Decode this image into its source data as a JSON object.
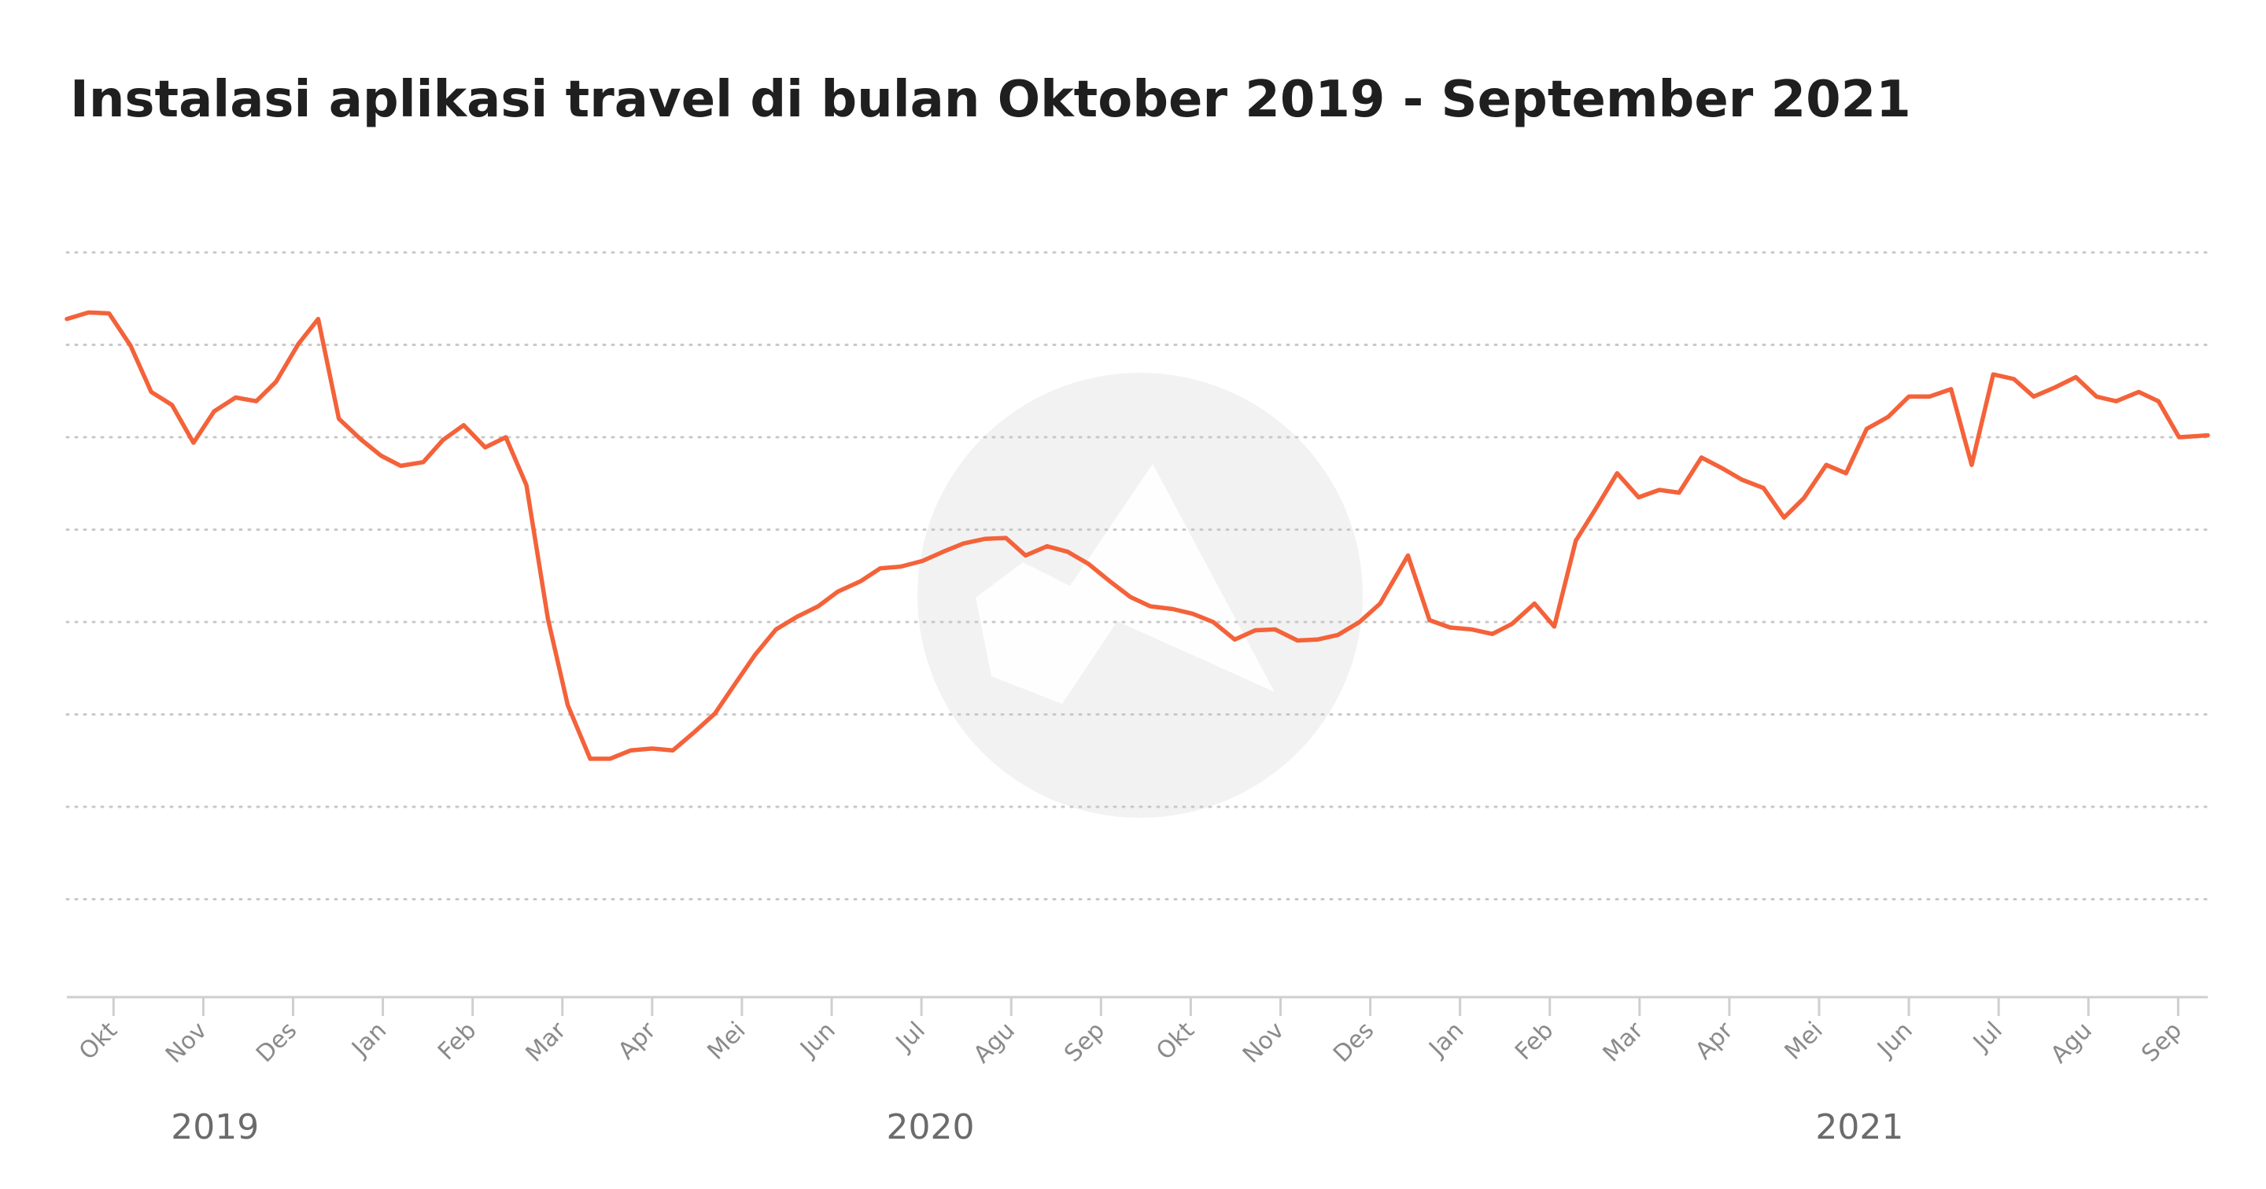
{
  "chart_data": {
    "type": "line",
    "title": "Instalasi aplikasi travel di bulan Oktober 2019 - September 2021",
    "color": "#f4623a",
    "grid": true,
    "xlim": [
      -0.52,
      23.33
    ],
    "ylim": [
      -0.06,
      8
    ],
    "yticks": [
      1,
      2,
      3,
      4,
      5,
      6,
      7,
      8
    ],
    "xticks": [
      {
        "value": 0,
        "label": "Okt"
      },
      {
        "value": 1,
        "label": "Nov"
      },
      {
        "value": 2,
        "label": "Des"
      },
      {
        "value": 3,
        "label": "Jan"
      },
      {
        "value": 4,
        "label": "Feb"
      },
      {
        "value": 5,
        "label": "Mar"
      },
      {
        "value": 6,
        "label": "Apr"
      },
      {
        "value": 7,
        "label": "Mei"
      },
      {
        "value": 8,
        "label": "Jun"
      },
      {
        "value": 9,
        "label": "Jul"
      },
      {
        "value": 10,
        "label": "Agu"
      },
      {
        "value": 11,
        "label": "Sep"
      },
      {
        "value": 12,
        "label": "Okt"
      },
      {
        "value": 13,
        "label": "Nov"
      },
      {
        "value": 14,
        "label": "Des"
      },
      {
        "value": 15,
        "label": "Jan"
      },
      {
        "value": 16,
        "label": "Feb"
      },
      {
        "value": 17,
        "label": "Mar"
      },
      {
        "value": 18,
        "label": "Apr"
      },
      {
        "value": 19,
        "label": "Mei"
      },
      {
        "value": 20,
        "label": "Jun"
      },
      {
        "value": 21,
        "label": "Jul"
      },
      {
        "value": 22,
        "label": "Agu"
      },
      {
        "value": 23,
        "label": "Sep"
      }
    ],
    "year_labels": [
      {
        "value": 1.13,
        "label": "2019"
      },
      {
        "value": 9.1,
        "label": "2020"
      },
      {
        "value": 19.45,
        "label": "2021"
      }
    ],
    "x": [
      -0.52,
      -0.28,
      -0.05,
      0.19,
      0.42,
      0.65,
      0.89,
      1.12,
      1.36,
      1.59,
      1.81,
      2.06,
      2.28,
      2.51,
      2.75,
      2.98,
      3.2,
      3.45,
      3.67,
      3.9,
      4.14,
      4.37,
      4.6,
      4.84,
      5.06,
      5.31,
      5.53,
      5.76,
      6.0,
      6.23,
      6.46,
      6.7,
      6.93,
      7.15,
      7.38,
      7.62,
      7.85,
      8.07,
      8.32,
      8.54,
      8.77,
      9.01,
      9.24,
      9.47,
      9.71,
      9.94,
      10.16,
      10.4,
      10.63,
      10.86,
      11.1,
      11.33,
      11.55,
      11.8,
      12.02,
      12.25,
      12.49,
      12.72,
      12.94,
      13.19,
      13.41,
      13.64,
      13.88,
      14.11,
      14.42,
      14.66,
      14.89,
      15.13,
      15.36,
      15.58,
      15.83,
      16.05,
      16.29,
      16.52,
      16.75,
      16.99,
      17.22,
      17.44,
      17.69,
      17.91,
      18.14,
      18.38,
      18.61,
      18.83,
      19.08,
      19.3,
      19.53,
      19.77,
      20.0,
      20.23,
      20.47,
      20.7,
      20.94,
      21.17,
      21.39,
      21.63,
      21.86,
      22.09,
      22.31,
      22.56,
      22.78,
      23.01,
      23.33
    ],
    "values": [
      7.28,
      7.35,
      7.34,
      6.99,
      6.49,
      6.35,
      5.94,
      6.28,
      6.43,
      6.39,
      6.6,
      7.01,
      7.28,
      6.2,
      5.98,
      5.8,
      5.69,
      5.73,
      5.97,
      6.13,
      5.89,
      6.0,
      5.48,
      4.03,
      3.1,
      2.52,
      2.52,
      2.61,
      2.63,
      2.61,
      2.8,
      3.01,
      3.34,
      3.65,
      3.92,
      4.06,
      4.17,
      4.33,
      4.44,
      4.58,
      4.6,
      4.66,
      4.76,
      4.85,
      4.9,
      4.91,
      4.72,
      4.82,
      4.76,
      4.63,
      4.44,
      4.27,
      4.17,
      4.14,
      4.09,
      4.0,
      3.81,
      3.91,
      3.92,
      3.8,
      3.81,
      3.86,
      4.0,
      4.2,
      4.72,
      4.02,
      3.94,
      3.92,
      3.87,
      3.98,
      4.2,
      3.95,
      4.88,
      5.24,
      5.61,
      5.35,
      5.43,
      5.4,
      5.78,
      5.67,
      5.54,
      5.45,
      5.13,
      5.34,
      5.7,
      5.61,
      6.09,
      6.22,
      6.44,
      6.44,
      6.52,
      5.7,
      6.68,
      6.63,
      6.44,
      6.54,
      6.65,
      6.44,
      6.39,
      6.49,
      6.39,
      6.0,
      6.02
    ]
  }
}
